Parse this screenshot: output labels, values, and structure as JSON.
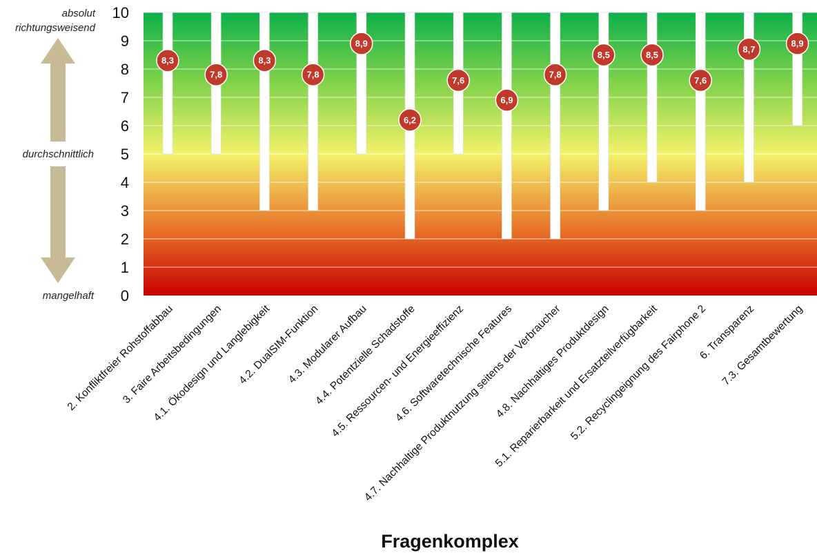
{
  "chart_data": {
    "type": "bar",
    "xlabel": "Fragenkomplex",
    "ylim": [
      0,
      10
    ],
    "yticks": [
      "0",
      "1",
      "2",
      "3",
      "4",
      "5",
      "6",
      "7",
      "8",
      "9",
      "10"
    ],
    "scale_labels": {
      "top_line1": "absolut",
      "top_line2": "richtungsweisend",
      "middle": "durchschnittlich",
      "bottom": "mangelhaft"
    },
    "categories": [
      "2. Konfliktfreier Rohstoffabbau",
      "3. Faire Arbeitsbedingungen",
      "4.1. Ökodesign und Langlebigkeit",
      "4.2. DualSIM-Funktion",
      "4.3. Modularer Aufbau",
      "4.4. Potentzielle Schadstoffe",
      "4.5. Ressourcen- und Energieeffizienz",
      "4.6. Softwaretechnische Features",
      "4.7. Nachhaltige Produktnutzung seitens der Verbraucher",
      "4.8. Nachhaltiges Produktdesign",
      "5.1. Reparierbarkeit und Ersatzteilverfügbarkeit",
      "5.2. Recyclingeignung des Fairphone 2",
      "6. Transparenz",
      "7.3. Gesamtbewertung"
    ],
    "series": [
      {
        "values": [
          8.3,
          7.8,
          8.3,
          7.8,
          8.9,
          6.2,
          7.6,
          6.9,
          7.8,
          8.5,
          8.5,
          7.6,
          8.7,
          8.9
        ]
      },
      {
        "values": [
          5,
          5,
          3,
          3,
          5,
          2,
          5,
          2,
          2,
          3,
          4,
          3,
          4,
          6
        ]
      },
      {
        "values": [
          10,
          10,
          10,
          10,
          10,
          10,
          10,
          10,
          10,
          10,
          10,
          10,
          10,
          10
        ]
      }
    ],
    "value_labels": [
      "8,3",
      "7,8",
      "8,3",
      "7,8",
      "8,9",
      "6,2",
      "7,6",
      "6,9",
      "7,8",
      "8,5",
      "8,5",
      "7,6",
      "8,7",
      "8,9"
    ],
    "grid": true,
    "background_gradient": [
      "#0db04b",
      "#7ed14a",
      "#f2f26a",
      "#e8762a",
      "#c80000"
    ],
    "colors": {
      "range_bar": "#ffffff",
      "badge": "#c0392b",
      "arrow": "#c6bb94",
      "grid": "#ffffff"
    }
  }
}
